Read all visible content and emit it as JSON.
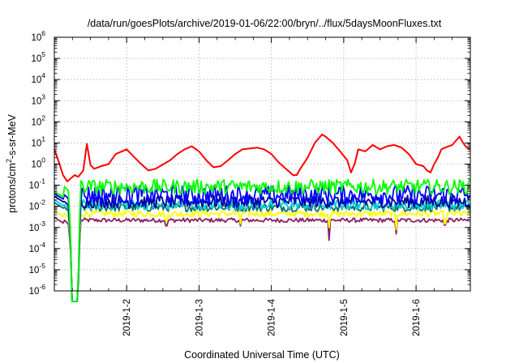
{
  "chart_data": {
    "type": "line",
    "title": "/data/run/goesPlots/archive/2019-01-06/22:00/bryn/../flux/5daysMoonFluxes.txt",
    "xlabel": "Coordinated Universal Time (UTC)",
    "ylabel_parts": [
      "protons/cm",
      "2",
      "-s-sr-MeV"
    ],
    "y_scale": "log",
    "ylim_exp": [
      -6,
      6
    ],
    "y_tick_labels": [
      {
        "base": "10",
        "exp": "-6"
      },
      {
        "base": "10",
        "exp": "-5"
      },
      {
        "base": "10",
        "exp": "-4"
      },
      {
        "base": "10",
        "exp": "-3"
      },
      {
        "base": "10",
        "exp": "-2"
      },
      {
        "base": "10",
        "exp": "-1"
      },
      {
        "base": "10",
        "exp": "0"
      },
      {
        "base": "10",
        "exp": "1"
      },
      {
        "base": "10",
        "exp": "2"
      },
      {
        "base": "10",
        "exp": "3"
      },
      {
        "base": "10",
        "exp": "4"
      },
      {
        "base": "10",
        "exp": "5"
      },
      {
        "base": "10",
        "exp": "6"
      }
    ],
    "x_range_days": [
      0,
      5.75
    ],
    "x_ticks": [
      {
        "day": 1.0,
        "label": "2019-1-2"
      },
      {
        "day": 2.0,
        "label": "2019-1-3"
      },
      {
        "day": 3.0,
        "label": "2019-1-4"
      },
      {
        "day": 4.0,
        "label": "2019-1-5"
      },
      {
        "day": 5.0,
        "label": "2019-1-6"
      }
    ],
    "grid": true,
    "series": [
      {
        "color": "#ff0000",
        "kind": "red",
        "x": [
          0.0,
          0.06,
          0.12,
          0.18,
          0.22,
          0.28,
          0.33,
          0.4,
          0.45,
          0.5,
          0.55,
          0.65,
          0.75,
          0.85,
          1.0,
          1.1,
          1.2,
          1.3,
          1.4,
          1.6,
          1.7,
          1.8,
          1.9,
          2.0,
          2.1,
          2.2,
          2.3,
          2.4,
          2.5,
          2.6,
          2.8,
          2.9,
          3.0,
          3.1,
          3.2,
          3.3,
          3.35,
          3.4,
          3.5,
          3.6,
          3.7,
          3.75,
          3.85,
          3.95,
          4.05,
          4.1,
          4.15,
          4.2,
          4.3,
          4.4,
          4.5,
          4.6,
          4.7,
          4.8,
          4.9,
          5.0,
          5.1,
          5.15,
          5.2,
          5.25,
          5.3,
          5.35,
          5.4,
          5.5,
          5.6,
          5.65,
          5.7,
          5.75
        ],
        "y": [
          5,
          1.3,
          0.3,
          0.15,
          0.2,
          0.3,
          0.25,
          0.5,
          9,
          0.9,
          0.6,
          0.8,
          1.0,
          3.0,
          5.0,
          2.2,
          1.0,
          0.5,
          0.6,
          1.5,
          3.0,
          5.0,
          7.0,
          4.0,
          1.5,
          0.7,
          0.8,
          1.5,
          3.0,
          5.0,
          6.0,
          5.0,
          3.0,
          1.2,
          0.6,
          0.3,
          0.3,
          0.6,
          2.0,
          10,
          25,
          20,
          10,
          4.0,
          1.5,
          0.4,
          1.0,
          5.0,
          4.0,
          8.0,
          5.0,
          7.0,
          8.0,
          6.0,
          3.0,
          1.0,
          0.8,
          0.5,
          0.4,
          1.0,
          2.0,
          5.0,
          6.0,
          8.0,
          20,
          10,
          6.0,
          5.0
        ]
      },
      {
        "color": "#00ff00",
        "kind": "noise",
        "base": 0.085,
        "start": 0.05,
        "noise": 0.35,
        "spikes": []
      },
      {
        "color": "#0000ff",
        "kind": "noise",
        "base": 0.035,
        "start": 0.04,
        "noise": 0.45,
        "spikes": []
      },
      {
        "color": "#0000a0",
        "kind": "noise",
        "base": 0.017,
        "start": 0.03,
        "noise": 0.3,
        "spikes": []
      },
      {
        "color": "#00d0d0",
        "kind": "noise",
        "base": 0.012,
        "start": 0.02,
        "noise": 0.25,
        "spikes": []
      },
      {
        "color": "#007070",
        "kind": "noise",
        "base": 0.009,
        "start": 0.015,
        "noise": 0.2,
        "spikes": []
      },
      {
        "color": "#ffff00",
        "kind": "noise",
        "base": 0.0045,
        "start": 0.006,
        "noise": 0.15,
        "spikes": [
          [
            1.55,
            0.002
          ],
          [
            2.57,
            0.0015
          ],
          [
            3.8,
            0.001
          ],
          [
            4.72,
            0.0008
          ],
          [
            5.4,
            0.0015
          ]
        ]
      },
      {
        "color": "#8b2060",
        "kind": "noise",
        "base": 0.0022,
        "start": 0.003,
        "noise": 0.1,
        "spikes": [
          [
            1.55,
            0.0012
          ],
          [
            2.57,
            0.0012
          ],
          [
            3.8,
            0.00025
          ],
          [
            4.72,
            0.0005
          ],
          [
            5.4,
            0.0013
          ]
        ]
      }
    ]
  }
}
